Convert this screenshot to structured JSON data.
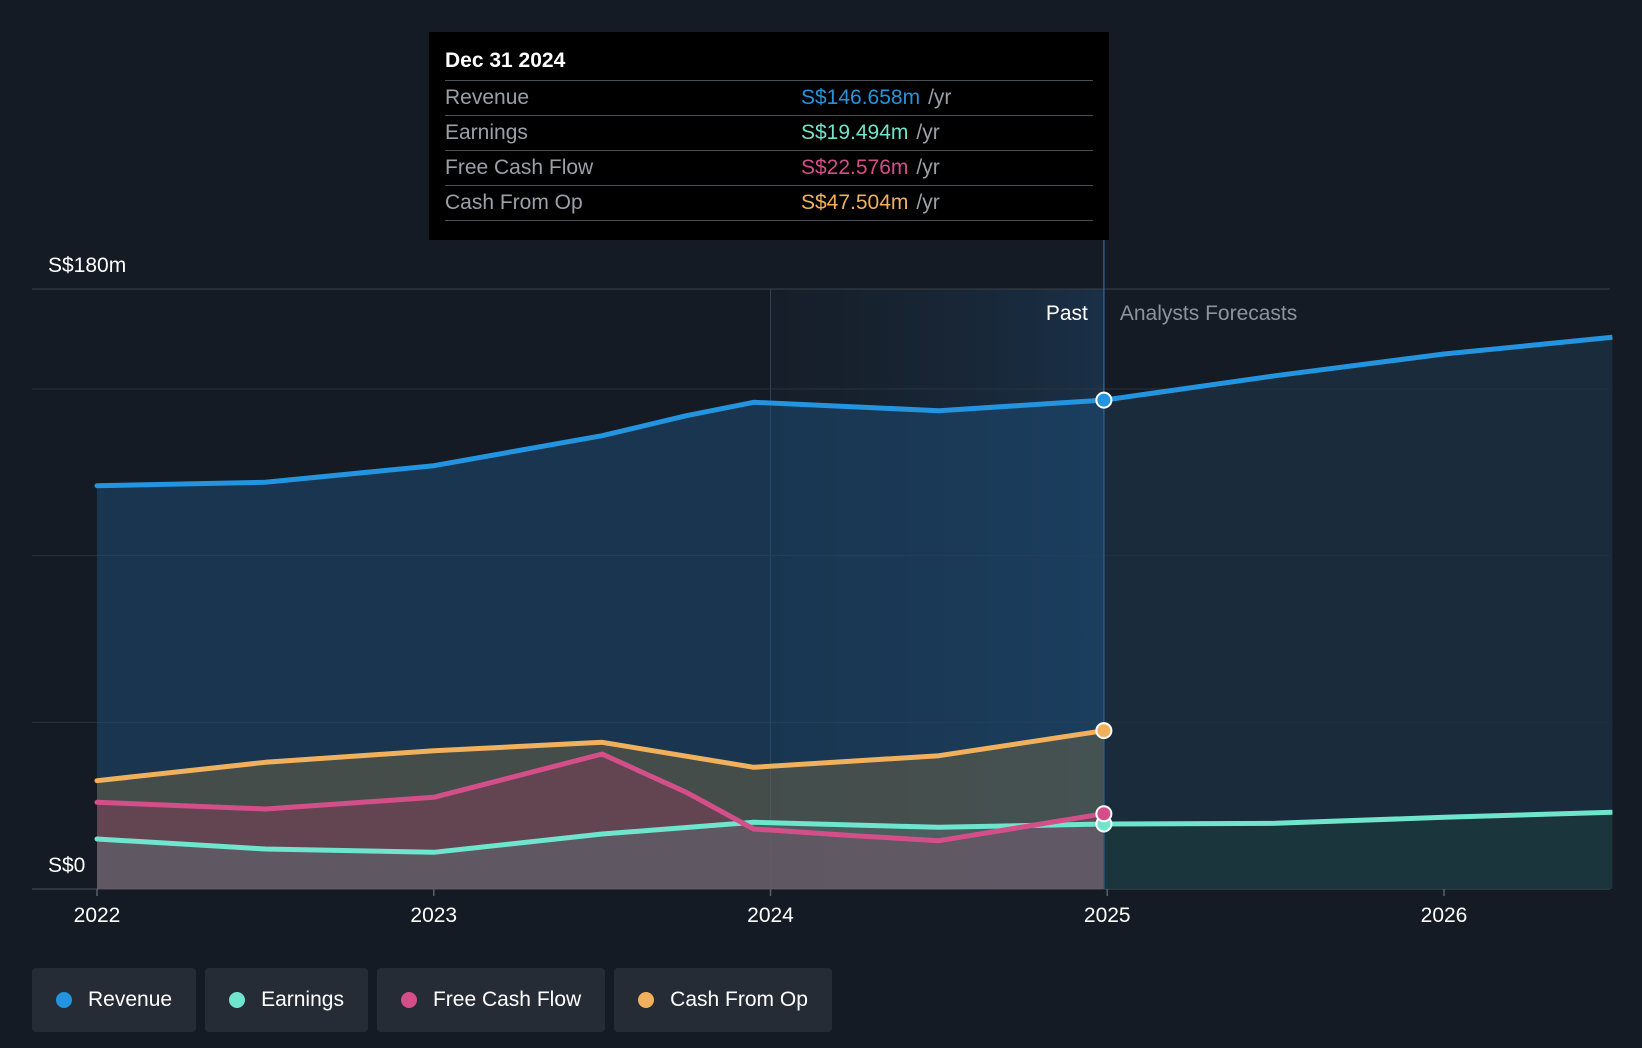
{
  "chart_data": {
    "type": "area",
    "y_axis": {
      "max_label": "S$180m",
      "min_label": "S$0",
      "ylim": [
        0,
        180
      ]
    },
    "x_axis": {
      "ticks": [
        "2022",
        "2023",
        "2024",
        "2025",
        "2026"
      ],
      "xlim": [
        2021.8,
        2026.5
      ]
    },
    "divider": {
      "x": 2024.99,
      "past_label": "Past",
      "forecast_label": "Analysts Forecasts"
    },
    "series": [
      {
        "name": "Revenue",
        "color": "#2394df",
        "points": [
          [
            2022.0,
            121
          ],
          [
            2022.5,
            122
          ],
          [
            2023.0,
            127
          ],
          [
            2023.5,
            136
          ],
          [
            2023.75,
            142
          ],
          [
            2023.95,
            146
          ],
          [
            2024.5,
            143.5
          ],
          [
            2024.99,
            146.658
          ]
        ],
        "forecast": [
          [
            2024.99,
            146.658
          ],
          [
            2025.5,
            154
          ],
          [
            2026.0,
            160.5
          ],
          [
            2026.5,
            165.5
          ]
        ]
      },
      {
        "name": "Earnings",
        "color": "#6ee5cc",
        "points": [
          [
            2022.0,
            15
          ],
          [
            2022.5,
            12
          ],
          [
            2023.0,
            11
          ],
          [
            2023.5,
            16.5
          ],
          [
            2023.95,
            20
          ],
          [
            2024.5,
            18.5
          ],
          [
            2024.99,
            19.494
          ]
        ],
        "forecast": [
          [
            2024.99,
            19.494
          ],
          [
            2025.5,
            19.7
          ],
          [
            2026.0,
            21.5
          ],
          [
            2026.5,
            23
          ]
        ]
      },
      {
        "name": "Free Cash Flow",
        "color": "#d44f89",
        "points": [
          [
            2022.0,
            26
          ],
          [
            2022.5,
            24
          ],
          [
            2023.0,
            27.5
          ],
          [
            2023.25,
            34
          ],
          [
            2023.5,
            40.5
          ],
          [
            2023.75,
            29
          ],
          [
            2023.95,
            18
          ],
          [
            2024.25,
            16
          ],
          [
            2024.5,
            14.5
          ],
          [
            2024.99,
            22.576
          ]
        ]
      },
      {
        "name": "Cash From Op",
        "color": "#f1b15c",
        "points": [
          [
            2022.0,
            32.5
          ],
          [
            2022.5,
            38
          ],
          [
            2023.0,
            41.5
          ],
          [
            2023.5,
            44
          ],
          [
            2023.95,
            36.5
          ],
          [
            2024.5,
            40
          ],
          [
            2024.99,
            47.504
          ]
        ]
      }
    ],
    "tooltip": {
      "date": "Dec 31 2024",
      "rows": [
        {
          "label": "Revenue",
          "value": "S$146.658m",
          "unit": "/yr",
          "color": "#2394df"
        },
        {
          "label": "Earnings",
          "value": "S$19.494m",
          "unit": "/yr",
          "color": "#6ee5cc"
        },
        {
          "label": "Free Cash Flow",
          "value": "S$22.576m",
          "unit": "/yr",
          "color": "#d44f89"
        },
        {
          "label": "Cash From Op",
          "value": "S$47.504m",
          "unit": "/yr",
          "color": "#f1b15c"
        }
      ]
    },
    "grid": true
  },
  "legend": [
    {
      "label": "Revenue",
      "color": "#2394df"
    },
    {
      "label": "Earnings",
      "color": "#6ee5cc"
    },
    {
      "label": "Free Cash Flow",
      "color": "#d44f89"
    },
    {
      "label": "Cash From Op",
      "color": "#f1b15c"
    }
  ]
}
